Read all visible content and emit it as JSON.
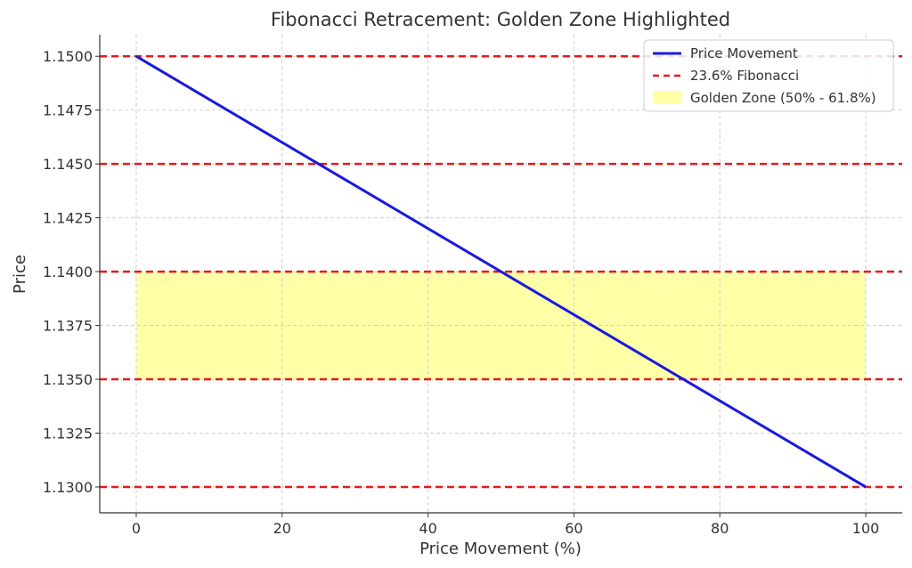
{
  "chart_data": {
    "type": "line",
    "title": "Fibonacci Retracement: Golden Zone Highlighted",
    "xlabel": "Price Movement (%)",
    "ylabel": "Price",
    "xlim": [
      -5,
      105
    ],
    "ylim": [
      1.1288,
      1.151
    ],
    "x_ticks": [
      0,
      20,
      40,
      60,
      80,
      100
    ],
    "y_ticks": [
      1.13,
      1.1325,
      1.135,
      1.1375,
      1.14,
      1.1425,
      1.145,
      1.1475,
      1.15
    ],
    "x_tick_labels": [
      "0",
      "20",
      "40",
      "60",
      "80",
      "100"
    ],
    "y_tick_labels": [
      "1.1300",
      "1.1325",
      "1.1350",
      "1.1375",
      "1.1400",
      "1.1425",
      "1.1450",
      "1.1475",
      "1.1500"
    ],
    "grid": true,
    "legend_position": "top-right",
    "series": [
      {
        "name": "Price Movement",
        "color": "#1a1adb",
        "x": [
          0,
          100
        ],
        "y": [
          1.15,
          1.13
        ]
      }
    ],
    "fibonacci_lines": {
      "name": "23.6% Fibonacci",
      "color": "#e31a1c",
      "levels": [
        1.15,
        1.145,
        1.14,
        1.135,
        1.13
      ]
    },
    "golden_zone": {
      "name": "Golden Zone (50% - 61.8%)",
      "color": "#ffffa8",
      "x_range": [
        0,
        100
      ],
      "y_range": [
        1.135,
        1.14
      ]
    }
  }
}
